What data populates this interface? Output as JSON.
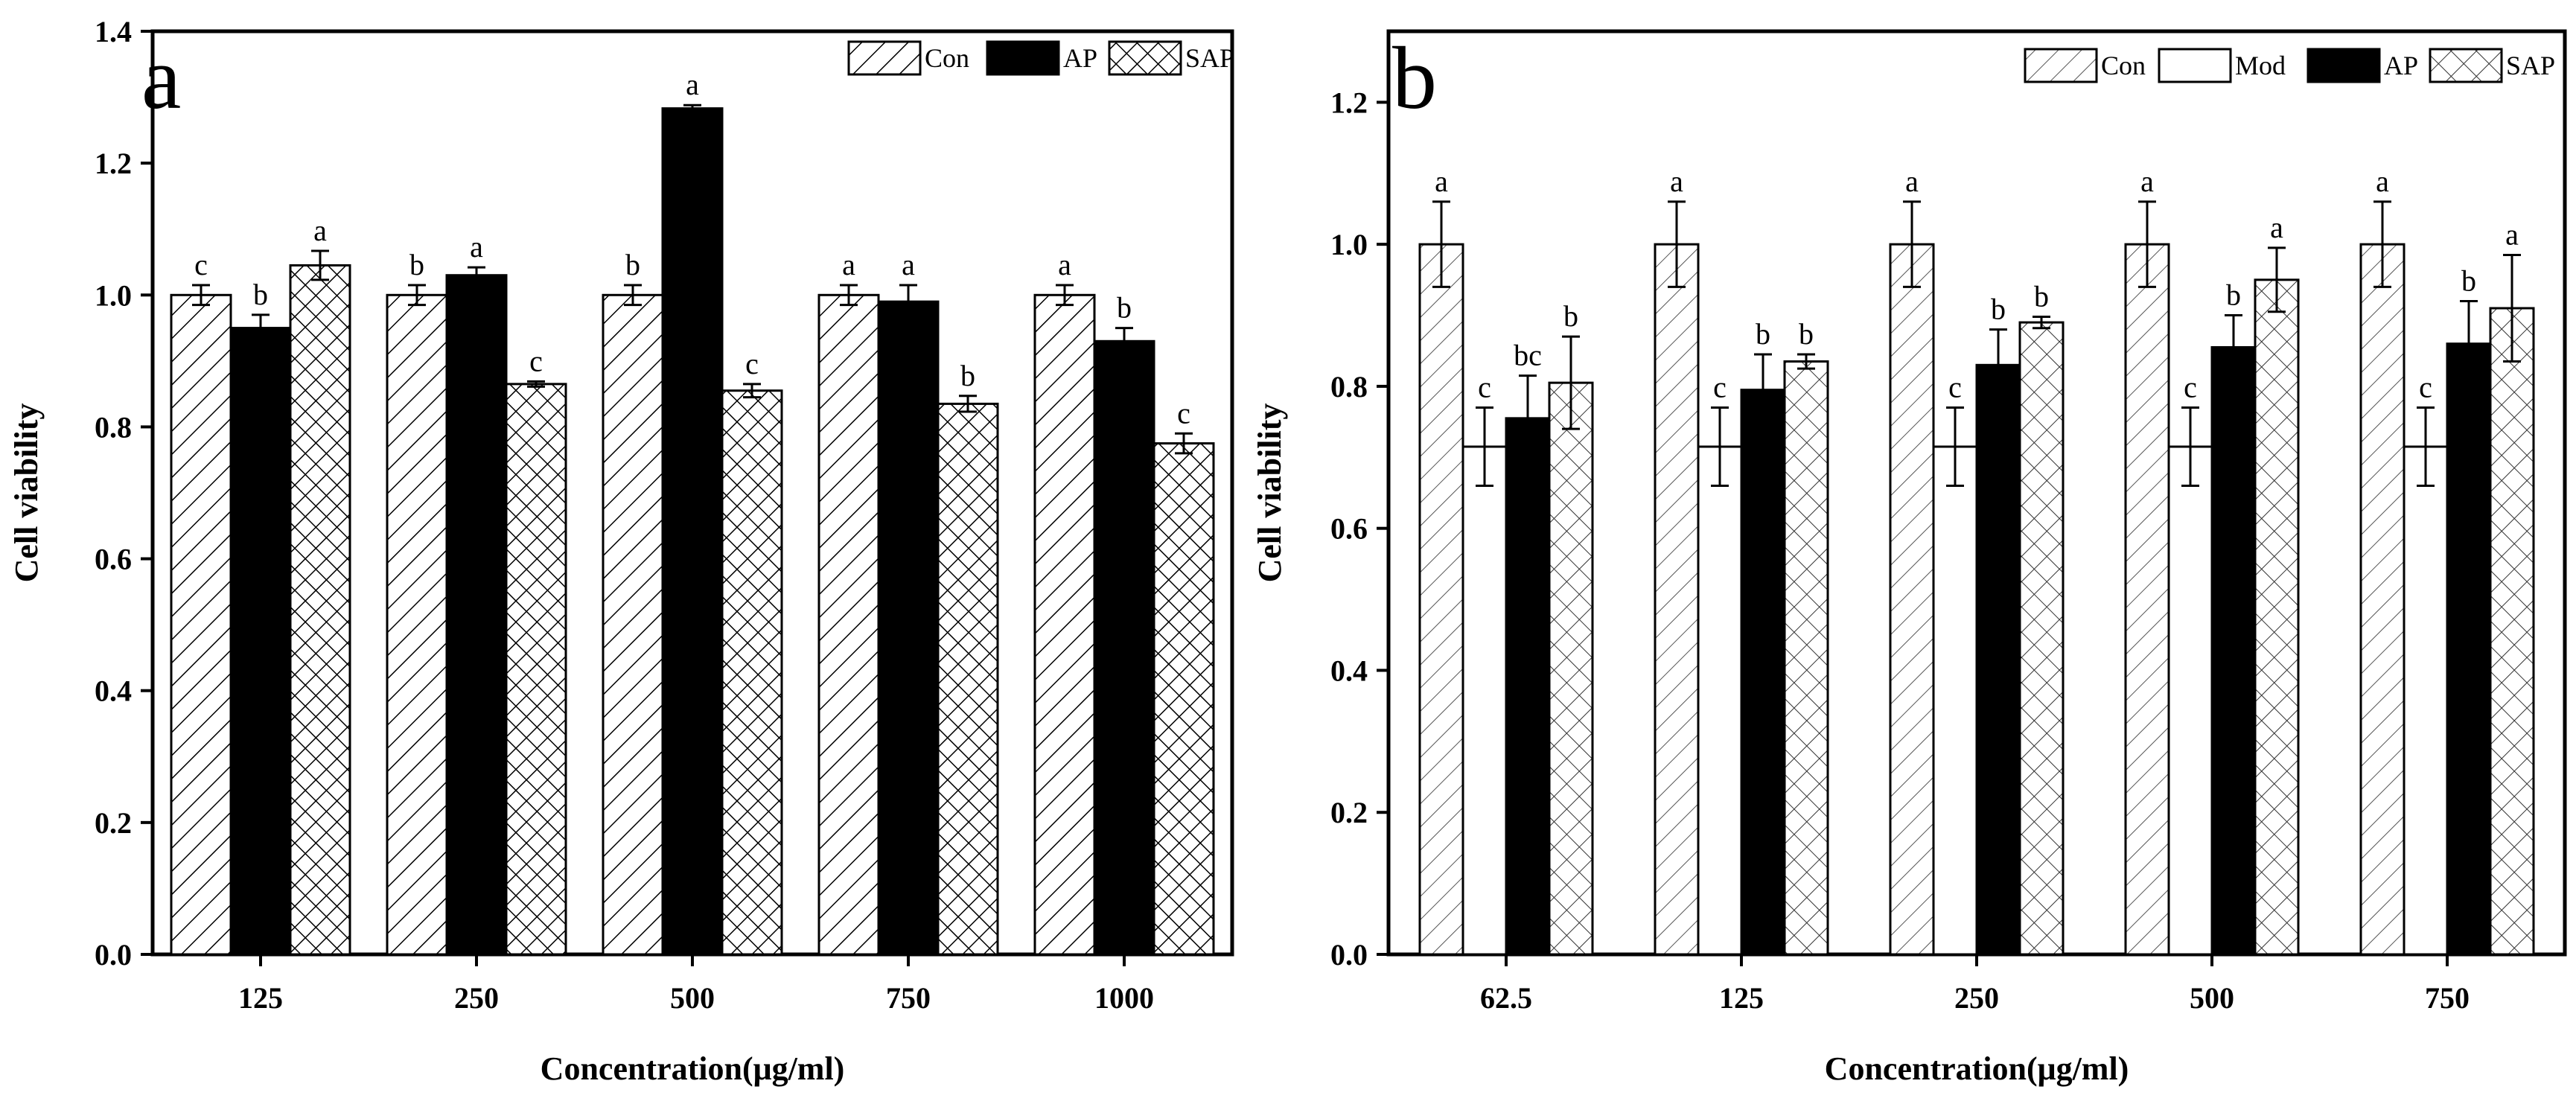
{
  "chart_data": [
    {
      "panel": "a",
      "type": "bar",
      "title": "",
      "xlabel": "Concentration(μg/ml)",
      "ylabel": "Cell viability",
      "ylim": [
        0,
        1.4
      ],
      "yticks": [
        "0.0",
        "0.2",
        "0.4",
        "0.6",
        "0.8",
        "1.0",
        "1.2",
        "1.4"
      ],
      "categories": [
        "125",
        "250",
        "500",
        "750",
        "1000"
      ],
      "legend_position": "top-right",
      "series": [
        {
          "name": "Con",
          "pattern": "hatch-right",
          "values": [
            1.0,
            1.0,
            1.0,
            1.0,
            1.0
          ],
          "errors": [
            0.015,
            0.015,
            0.015,
            0.015,
            0.015
          ],
          "letters": [
            "c",
            "b",
            "b",
            "a",
            "a"
          ]
        },
        {
          "name": "AP",
          "pattern": "solid",
          "values": [
            0.95,
            1.03,
            1.283,
            0.99,
            0.93
          ],
          "errors": [
            0.02,
            0.012,
            0.005,
            0.025,
            0.02
          ],
          "letters": [
            "b",
            "a",
            "a",
            "a",
            "b"
          ]
        },
        {
          "name": "SAP",
          "pattern": "crosshatch",
          "values": [
            1.045,
            0.865,
            0.855,
            0.835,
            0.775
          ],
          "errors": [
            0.022,
            0.004,
            0.01,
            0.012,
            0.015
          ],
          "letters": [
            "a",
            "c",
            "c",
            "b",
            "c"
          ]
        }
      ]
    },
    {
      "panel": "b",
      "type": "bar",
      "title": "",
      "xlabel": "Concentration(μg/ml)",
      "ylabel": "Cell viability",
      "ylim": [
        0,
        1.3
      ],
      "yticks": [
        "0.0",
        "0.2",
        "0.4",
        "0.6",
        "0.8",
        "1.0",
        "1.2"
      ],
      "categories": [
        "62.5",
        "125",
        "250",
        "500",
        "750"
      ],
      "legend_position": "top-right",
      "series": [
        {
          "name": "Con",
          "pattern": "hatch-right-light",
          "values": [
            1.0,
            1.0,
            1.0,
            1.0,
            1.0
          ],
          "errors": [
            0.06,
            0.06,
            0.06,
            0.06,
            0.06
          ],
          "letters": [
            "a",
            "a",
            "a",
            "a",
            "a"
          ]
        },
        {
          "name": "Mod",
          "pattern": "open",
          "values": [
            0.715,
            0.715,
            0.715,
            0.715,
            0.715
          ],
          "errors": [
            0.055,
            0.055,
            0.055,
            0.055,
            0.055
          ],
          "letters": [
            "c",
            "c",
            "c",
            "c",
            "c"
          ]
        },
        {
          "name": "AP",
          "pattern": "solid",
          "values": [
            0.755,
            0.795,
            0.83,
            0.855,
            0.86
          ],
          "errors": [
            0.06,
            0.05,
            0.05,
            0.045,
            0.06
          ],
          "letters": [
            "bc",
            "b",
            "b",
            "b",
            "b"
          ]
        },
        {
          "name": "SAP",
          "pattern": "crosshatch-light",
          "values": [
            0.805,
            0.835,
            0.89,
            0.95,
            0.91
          ],
          "errors": [
            0.065,
            0.01,
            0.008,
            0.045,
            0.075
          ],
          "letters": [
            "b",
            "b",
            "b",
            "a",
            "a"
          ]
        }
      ]
    }
  ]
}
